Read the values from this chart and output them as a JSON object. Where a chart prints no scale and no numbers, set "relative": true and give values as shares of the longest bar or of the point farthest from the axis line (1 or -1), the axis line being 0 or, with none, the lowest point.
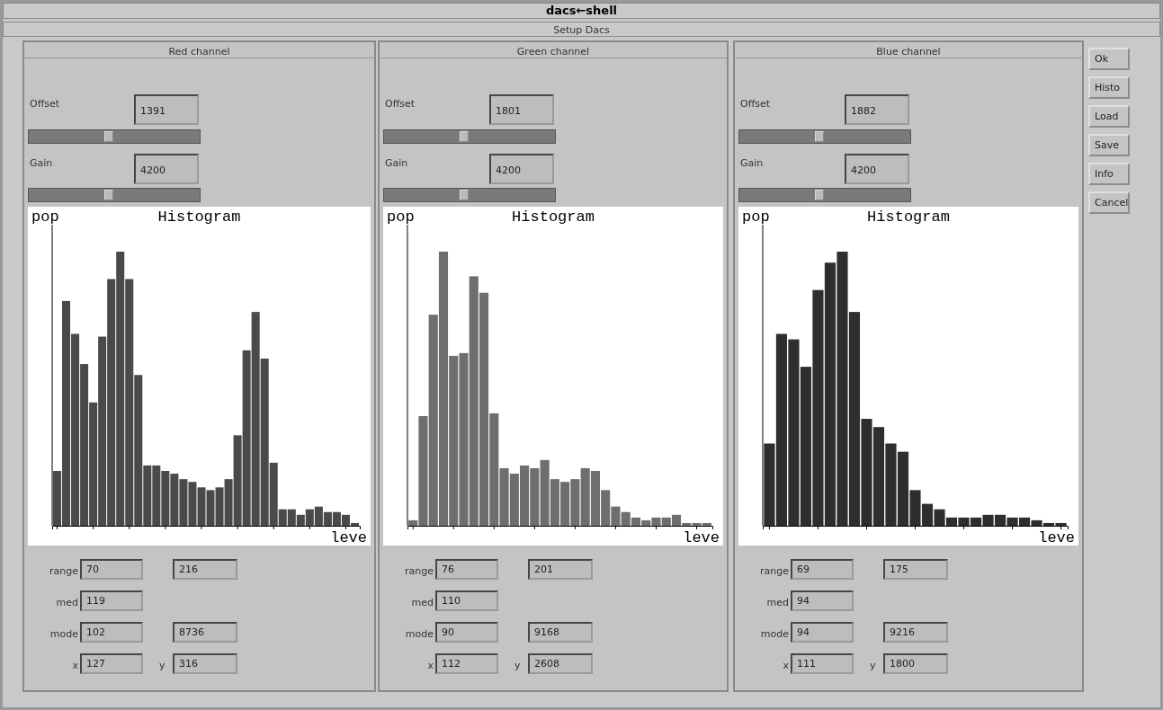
{
  "chart_data": [
    {
      "type": "bar",
      "relative": true,
      "subtitle": "Red channel",
      "title": "Histogram",
      "ylabel": "pop",
      "xlabel": "leve",
      "color": "#4a4a4a",
      "categories": [
        null,
        null,
        null,
        null,
        null,
        null,
        null,
        null,
        null,
        null,
        null,
        null,
        null,
        null,
        null,
        null,
        null,
        null,
        null,
        null,
        null,
        null,
        null,
        null,
        null,
        null,
        null,
        null,
        null,
        null,
        null,
        null,
        null,
        null
      ],
      "values": [
        0.2,
        0.82,
        0.7,
        0.59,
        0.45,
        0.69,
        0.9,
        1,
        0.9,
        0.55,
        0.22,
        0.22,
        0.2,
        0.19,
        0.17,
        0.16,
        0.14,
        0.13,
        0.14,
        0.17,
        0.33,
        0.64,
        0.78,
        0.61,
        0.23,
        0.06,
        0.06,
        0.04,
        0.06,
        0.07,
        0.05,
        0.05,
        0.04,
        0.01
      ],
      "annotations": [
        "Offset",
        "1391",
        "Gain",
        "4200",
        "range",
        "70",
        "216",
        "med",
        "119",
        "mode",
        "102",
        "8736",
        "x",
        "127",
        "y",
        "316"
      ]
    },
    {
      "type": "bar",
      "relative": true,
      "subtitle": "Green channel",
      "title": "Histogram",
      "ylabel": "pop",
      "xlabel": "leve",
      "color": "#6e6e6e",
      "categories": [
        null,
        null,
        null,
        null,
        null,
        null,
        null,
        null,
        null,
        null,
        null,
        null,
        null,
        null,
        null,
        null,
        null,
        null,
        null,
        null,
        null,
        null,
        null,
        null,
        null,
        null,
        null,
        null,
        null,
        null
      ],
      "values": [
        0.02,
        0.4,
        0.77,
        1,
        0.62,
        0.63,
        0.91,
        0.85,
        0.41,
        0.21,
        0.19,
        0.22,
        0.21,
        0.24,
        0.17,
        0.16,
        0.17,
        0.21,
        0.2,
        0.13,
        0.07,
        0.05,
        0.03,
        0.02,
        0.03,
        0.03,
        0.04,
        0.01,
        0.01,
        0.01
      ],
      "annotations": [
        "Offset",
        "1801",
        "Gain",
        "4200",
        "range",
        "76",
        "201",
        "med",
        "110",
        "mode",
        "90",
        "9168",
        "x",
        "112",
        "y",
        "2608"
      ]
    },
    {
      "type": "bar",
      "relative": true,
      "subtitle": "Blue channel",
      "title": "Histogram",
      "ylabel": "pop",
      "xlabel": "leve",
      "color": "#2e2e2e",
      "categories": [
        null,
        null,
        null,
        null,
        null,
        null,
        null,
        null,
        null,
        null,
        null,
        null,
        null,
        null,
        null,
        null,
        null,
        null,
        null,
        null,
        null,
        null,
        null,
        null,
        null
      ],
      "values": [
        0.3,
        0.7,
        0.68,
        0.58,
        0.86,
        0.96,
        1,
        0.78,
        0.39,
        0.36,
        0.3,
        0.27,
        0.13,
        0.08,
        0.06,
        0.03,
        0.03,
        0.03,
        0.04,
        0.04,
        0.03,
        0.03,
        0.02,
        0.01,
        0.01
      ],
      "annotations": [
        "Offset",
        "1882",
        "Gain",
        "4200",
        "range",
        "69",
        "175",
        "med",
        "94",
        "mode",
        "94",
        "9216",
        "x",
        "111",
        "y",
        "1800"
      ]
    },
    {
      "type": "other",
      "title": "dacs←shell",
      "subtitle": "Setup Dacs",
      "annotations": [
        "Ok",
        "Histo",
        "Load",
        "Save",
        "Info",
        "Cancel"
      ]
    }
  ]
}
